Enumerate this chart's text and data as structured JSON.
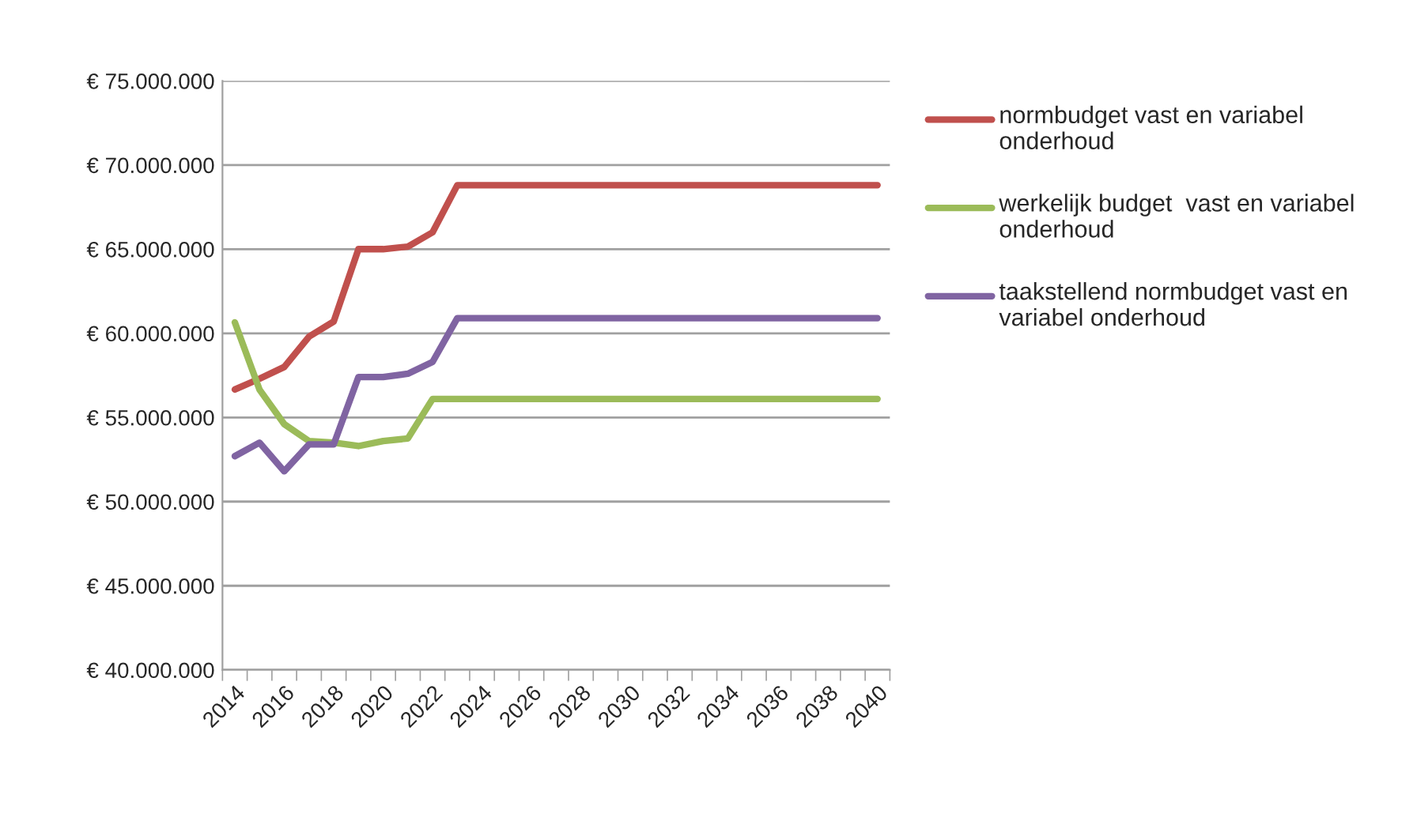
{
  "chart_data": {
    "type": "line",
    "categories": [
      "2014",
      null,
      "2016",
      null,
      "2018",
      null,
      "2020",
      null,
      "2022",
      null,
      "2024",
      null,
      "2026",
      null,
      "2028",
      null,
      "2030",
      null,
      "2032",
      null,
      "2034",
      null,
      "2036",
      null,
      "2038",
      null,
      "2040"
    ],
    "series": [
      {
        "name": "normbudget vast en variabel onderhoud",
        "color": "#c0504d",
        "values": [
          56660000,
          57300000,
          58000000,
          59800000,
          60700000,
          65000000,
          65000000,
          65150000,
          66000000,
          68800000,
          68800000,
          68800000,
          68800000,
          68800000,
          68800000,
          68800000,
          68800000,
          68800000,
          68800000,
          68800000,
          68800000,
          68800000,
          68800000,
          68800000,
          68800000,
          68800000,
          68800000
        ]
      },
      {
        "name": "werkelijk budget  vast en variabel onderhoud",
        "color": "#9bbb59",
        "values": [
          60650000,
          56650000,
          54600000,
          53600000,
          53500000,
          53300000,
          53600000,
          53750000,
          56100000,
          56100000,
          56100000,
          56100000,
          56100000,
          56100000,
          56100000,
          56100000,
          56100000,
          56100000,
          56100000,
          56100000,
          56100000,
          56100000,
          56100000,
          56100000,
          56100000,
          56100000,
          56100000
        ]
      },
      {
        "name": "taakstellend normbudget vast en variabel onderhoud",
        "color": "#8064a2",
        "values": [
          52700000,
          53500000,
          51800000,
          53400000,
          53400000,
          57400000,
          57400000,
          57600000,
          58300000,
          60900000,
          60900000,
          60900000,
          60900000,
          60900000,
          60900000,
          60900000,
          60900000,
          60900000,
          60900000,
          60900000,
          60900000,
          60900000,
          60900000,
          60900000,
          60900000,
          60900000,
          60900000
        ]
      }
    ],
    "ylim": [
      40000000,
      75000000
    ],
    "yticks": [
      {
        "value": 40000000,
        "label": "€ 40.000.000"
      },
      {
        "value": 45000000,
        "label": "€ 45.000.000"
      },
      {
        "value": 50000000,
        "label": "€ 50.000.000"
      },
      {
        "value": 55000000,
        "label": "€ 55.000.000"
      },
      {
        "value": 60000000,
        "label": "€ 60.000.000"
      },
      {
        "value": 65000000,
        "label": "€ 65.000.000"
      },
      {
        "value": 70000000,
        "label": "€ 70.000.000"
      },
      {
        "value": 75000000,
        "label": "€ 75.000.000"
      }
    ],
    "grid": "y",
    "legend": "right",
    "marker": "none",
    "line_style": "solid"
  }
}
